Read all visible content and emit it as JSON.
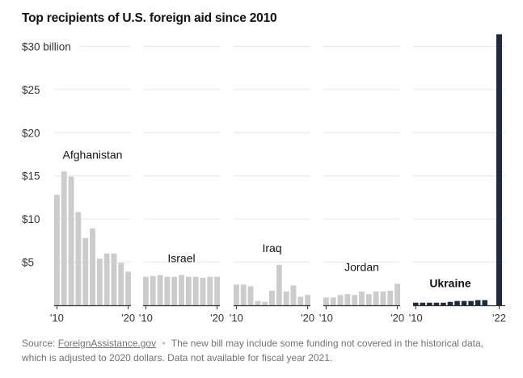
{
  "title": "Top recipients of U.S. foreign aid since 2010",
  "source_label": "Source:",
  "source_link": "ForeignAssistance.gov",
  "note": "The new bill may include some funding not covered in the historical data, which is adjusted to 2020 dollars. Data not available for fiscal year 2021.",
  "colors": {
    "bar_default": "#cccccc",
    "bar_highlight": "#1f2a3c",
    "gridline": "#e6e6e6",
    "axis": "#333333"
  },
  "chart_data": {
    "type": "bar",
    "title": "Top recipients of U.S. foreign aid since 2010",
    "xlabel": "",
    "ylabel": "",
    "ylim": [
      0,
      32
    ],
    "y_ticks": [
      5,
      10,
      15,
      20,
      25,
      30
    ],
    "y_tick_labels": [
      "$5",
      "$10",
      "$15",
      "$20",
      "$25",
      "$30 billion"
    ],
    "panels": [
      {
        "name": "Afghanistan",
        "bold": false,
        "highlight": false,
        "x_tick_labels": [
          "'10",
          "'20"
        ],
        "values": [
          12.8,
          15.5,
          14.9,
          10.8,
          7.8,
          8.9,
          5.4,
          6.0,
          6.0,
          4.9,
          3.9
        ]
      },
      {
        "name": "Israel",
        "bold": false,
        "highlight": false,
        "x_tick_labels": [
          "'10",
          "'20"
        ],
        "values": [
          3.3,
          3.4,
          3.5,
          3.3,
          3.3,
          3.5,
          3.3,
          3.3,
          3.2,
          3.3,
          3.3
        ]
      },
      {
        "name": "Iraq",
        "bold": false,
        "highlight": false,
        "x_tick_labels": [
          "'10",
          "'20"
        ],
        "values": [
          2.4,
          2.4,
          2.2,
          0.5,
          0.4,
          1.7,
          4.7,
          1.6,
          2.3,
          1.0,
          1.2
        ]
      },
      {
        "name": "Jordan",
        "bold": false,
        "highlight": false,
        "x_tick_labels": [
          "'10",
          "'20"
        ],
        "values": [
          0.9,
          0.9,
          1.2,
          1.3,
          1.2,
          1.6,
          1.3,
          1.6,
          1.6,
          1.7,
          2.5
        ]
      },
      {
        "name": "Ukraine",
        "bold": true,
        "highlight": true,
        "x_tick_labels": [
          "'10",
          "'22"
        ],
        "values": [
          0.3,
          0.3,
          0.3,
          0.3,
          0.3,
          0.4,
          0.5,
          0.5,
          0.5,
          0.6,
          0.6,
          31.4
        ],
        "value_gap_before_last": true
      }
    ]
  }
}
